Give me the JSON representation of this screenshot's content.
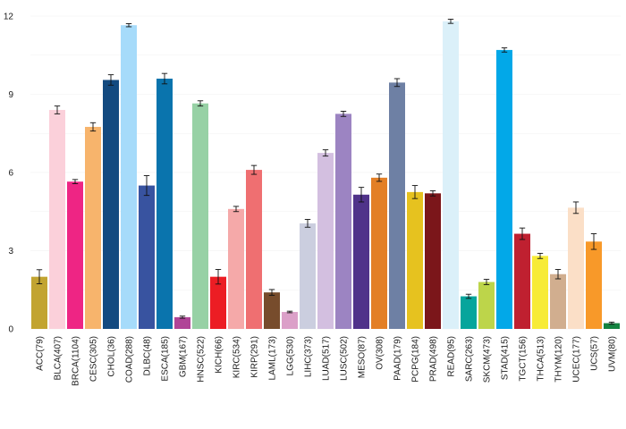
{
  "chart_data": {
    "type": "bar",
    "title": "",
    "xlabel": "",
    "ylabel": "",
    "ylim": [
      0,
      12
    ],
    "yticks": [
      0,
      3,
      6,
      9,
      12
    ],
    "grid": true,
    "categories": [
      "ACC(79)",
      "BLCA(407)",
      "BRCA(1104)",
      "CESC(305)",
      "CHOL(36)",
      "COAD(288)",
      "DLBC(48)",
      "ESCA(185)",
      "GBM(167)",
      "HNSC(522)",
      "KICH(66)",
      "KIRC(534)",
      "KIRP(291)",
      "LAML(173)",
      "LGG(530)",
      "LIHC(373)",
      "LUAD(517)",
      "LUSC(502)",
      "MESO(87)",
      "OV(308)",
      "PAAD(179)",
      "PCPG(184)",
      "PRAD(498)",
      "READ(95)",
      "SARC(263)",
      "SKCM(473)",
      "STAD(415)",
      "TGCT(156)",
      "THCA(513)",
      "THYM(120)",
      "UCEC(177)",
      "UCS(57)",
      "UVM(80)"
    ],
    "values": [
      2.0,
      8.4,
      5.65,
      7.75,
      9.55,
      11.65,
      5.5,
      9.6,
      0.45,
      8.65,
      2.0,
      4.6,
      6.1,
      1.4,
      0.65,
      4.05,
      6.75,
      8.25,
      5.15,
      5.8,
      9.45,
      5.25,
      5.2,
      11.8,
      1.25,
      1.8,
      10.7,
      3.65,
      2.8,
      2.1,
      4.65,
      3.35,
      0.22
    ],
    "errors": [
      0.27,
      0.15,
      0.08,
      0.16,
      0.2,
      0.06,
      0.38,
      0.2,
      0.04,
      0.1,
      0.28,
      0.1,
      0.17,
      0.11,
      0.03,
      0.15,
      0.12,
      0.1,
      0.28,
      0.14,
      0.15,
      0.25,
      0.1,
      0.08,
      0.08,
      0.1,
      0.08,
      0.22,
      0.1,
      0.18,
      0.22,
      0.3,
      0.04
    ],
    "colors": [
      "#c2a431",
      "#fbd0da",
      "#ee2584",
      "#f7b46c",
      "#134a80",
      "#a6dbfa",
      "#3853a0",
      "#0a74ad",
      "#b04497",
      "#97d1a5",
      "#ec1d24",
      "#f5a9a9",
      "#ef6f71",
      "#774c2c",
      "#dba0c8",
      "#cbcedf",
      "#d3bfe0",
      "#9c84c2",
      "#50338a",
      "#e37f26",
      "#6e80a4",
      "#e6c21f",
      "#7b161a",
      "#dbf0f9",
      "#06a59c",
      "#bdd54a",
      "#02a8e8",
      "#bf2030",
      "#f7eb36",
      "#d1ae8f",
      "#fbdfc7",
      "#f89929",
      "#138341"
    ]
  }
}
